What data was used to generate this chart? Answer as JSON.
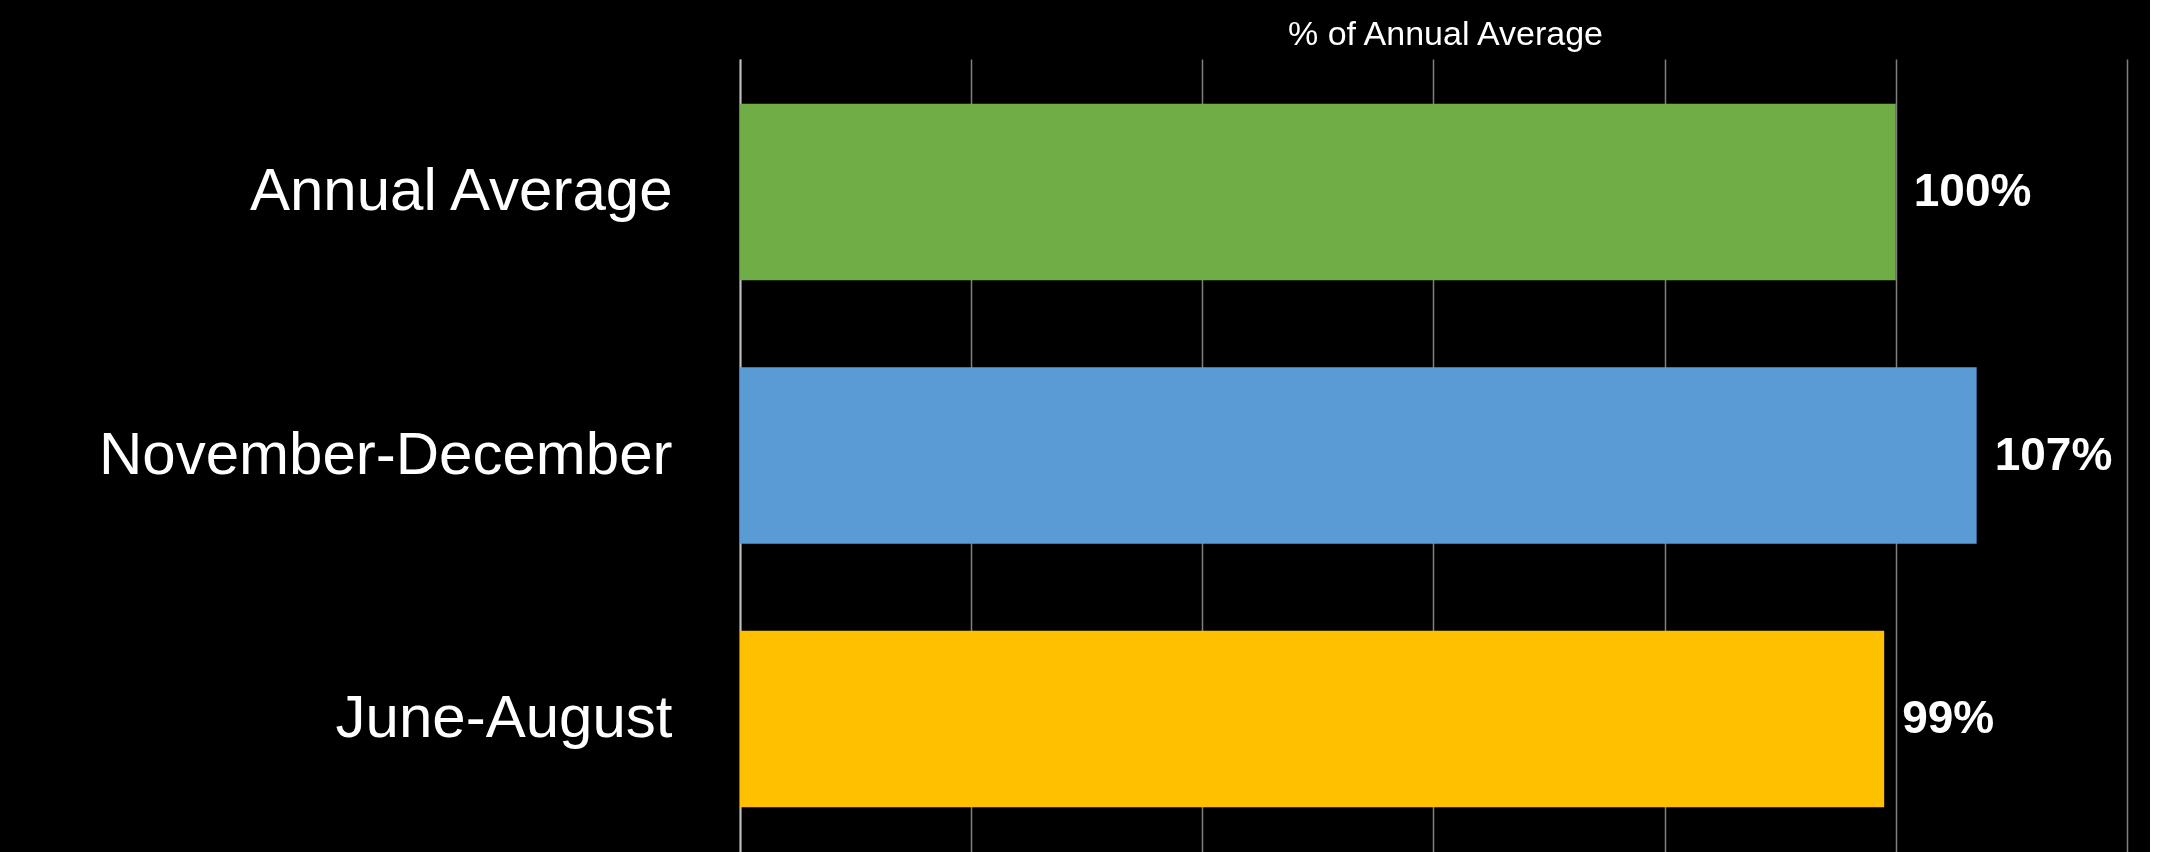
{
  "chart_data": {
    "type": "bar",
    "orientation": "horizontal",
    "xlabel": "% of Annual Average",
    "categories": [
      "Annual Average",
      "November-December",
      "June-August"
    ],
    "values": [
      100,
      107,
      99
    ],
    "colors": [
      "#70ad47",
      "#5b9bd5",
      "#ffc000"
    ],
    "value_labels": [
      "100%",
      "107%",
      "99%"
    ],
    "xlim": [
      0,
      122
    ],
    "xticks": [
      {
        "value": 0,
        "label": null
      },
      {
        "value": 20,
        "label": null
      },
      {
        "value": 40,
        "label": null
      },
      {
        "value": 60,
        "label": null
      },
      {
        "value": 80,
        "label": null
      },
      {
        "value": 100,
        "label": null
      },
      {
        "value": 120,
        "label": null
      }
    ],
    "tick_labels": "y",
    "grid": "x"
  }
}
